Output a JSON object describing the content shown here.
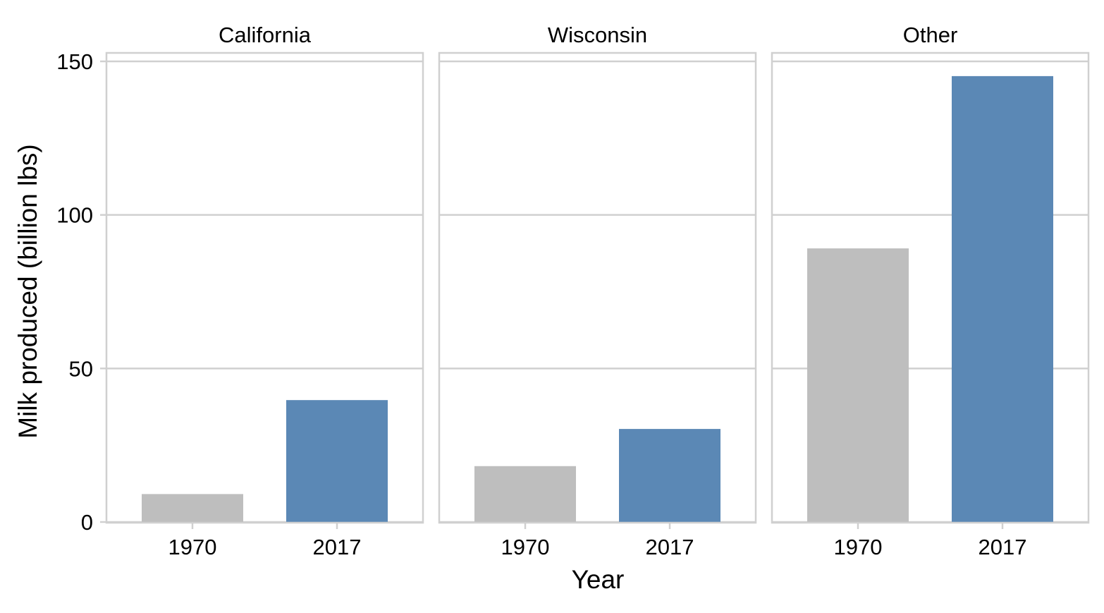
{
  "chart_data": {
    "type": "bar",
    "ylabel": "Milk produced (billion lbs)",
    "xlabel": "Year",
    "ylim": [
      0,
      150
    ],
    "yticks": [
      0,
      50,
      100,
      150
    ],
    "categories": [
      "1970",
      "2017"
    ],
    "category_colors": {
      "1970": "#bebebe",
      "2017": "#5b88b5"
    },
    "grid": true,
    "legend": "none",
    "panels": [
      {
        "title": "California",
        "values": [
          9.1,
          39.7
        ]
      },
      {
        "title": "Wisconsin",
        "values": [
          18.2,
          30.3
        ]
      },
      {
        "title": "Other",
        "values": [
          89.1,
          145.2
        ]
      }
    ]
  }
}
